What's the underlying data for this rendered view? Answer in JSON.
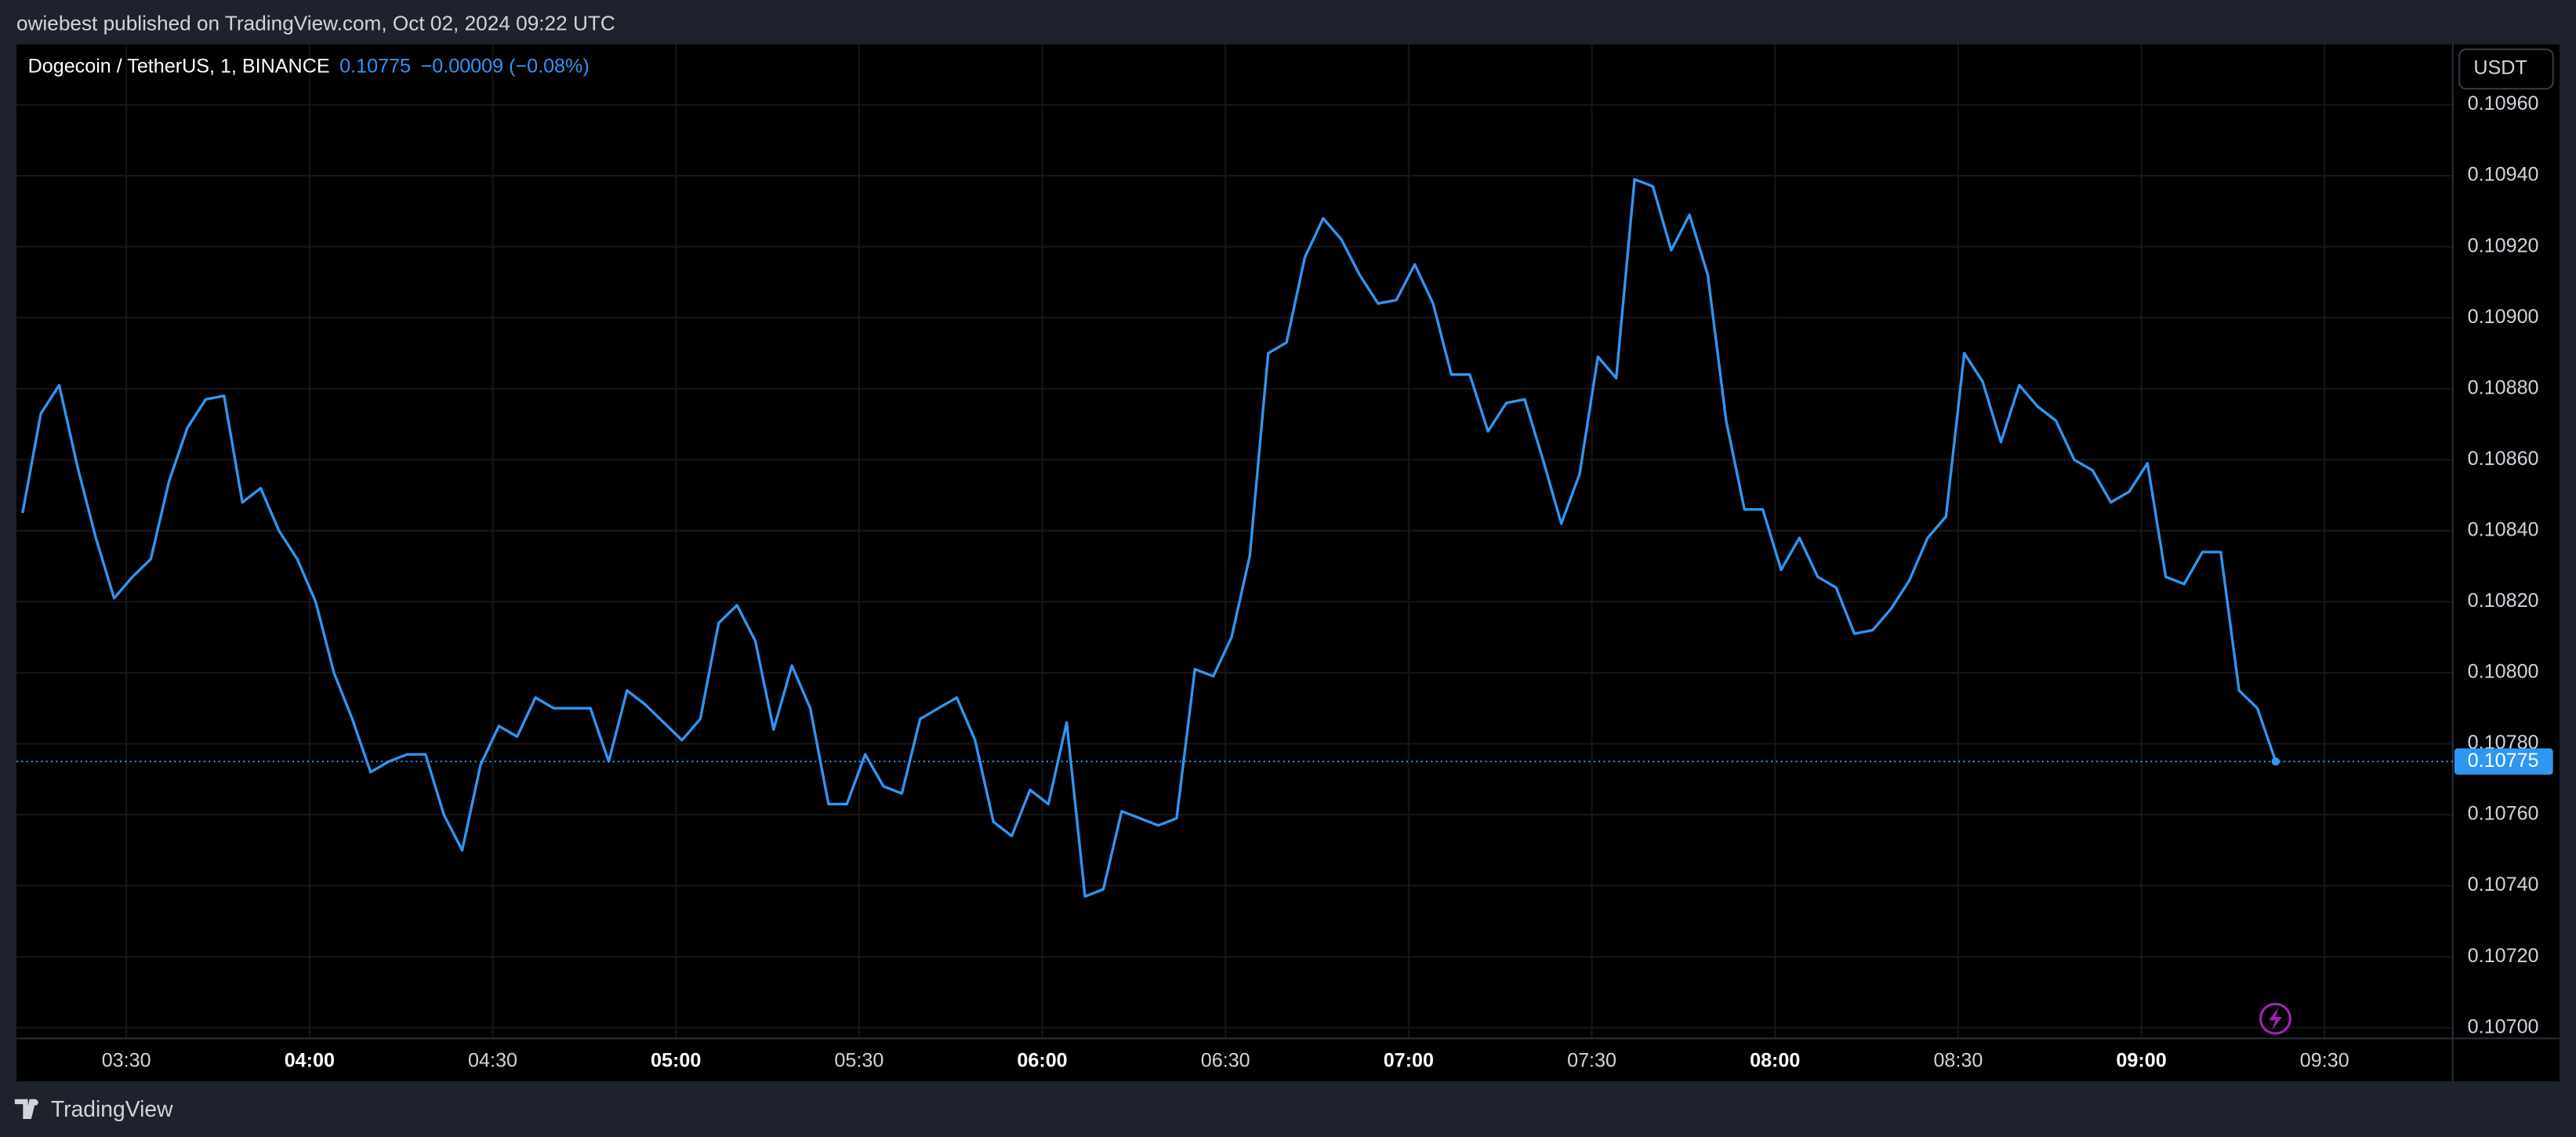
{
  "header": {
    "published": "owiebest published on TradingView.com, Oct 02, 2024 09:22 UTC"
  },
  "footer": {
    "brand": "TradingView"
  },
  "chart_data": {
    "type": "line",
    "symbol": "Dogecoin / TetherUS, 1, BINANCE",
    "last_price": {
      "value": 0.10775,
      "label": "0.10775"
    },
    "change": "−0.00009 (−0.08%)",
    "currency": "USDT",
    "color": "#2f96f3",
    "grid": true,
    "x": [
      "03:13",
      "03:16",
      "03:19",
      "03:22",
      "03:25",
      "03:28",
      "03:31",
      "03:34",
      "03:37",
      "03:40",
      "03:43",
      "03:46",
      "03:49",
      "03:52",
      "03:55",
      "03:58",
      "04:01",
      "04:04",
      "04:07",
      "04:10",
      "04:13",
      "04:16",
      "04:19",
      "04:22",
      "04:25",
      "04:28",
      "04:31",
      "04:34",
      "04:37",
      "04:40",
      "04:43",
      "04:46",
      "04:49",
      "04:52",
      "04:55",
      "04:58",
      "05:01",
      "05:04",
      "05:07",
      "05:10",
      "05:13",
      "05:16",
      "05:19",
      "05:22",
      "05:25",
      "05:28",
      "05:31",
      "05:34",
      "05:37",
      "05:40",
      "05:43",
      "05:46",
      "05:49",
      "05:52",
      "05:55",
      "05:58",
      "06:01",
      "06:04",
      "06:07",
      "06:10",
      "06:13",
      "06:16",
      "06:19",
      "06:22",
      "06:25",
      "06:28",
      "06:31",
      "06:34",
      "06:37",
      "06:40",
      "06:43",
      "06:46",
      "06:49",
      "06:52",
      "06:55",
      "06:58",
      "07:01",
      "07:04",
      "07:07",
      "07:10",
      "07:13",
      "07:16",
      "07:19",
      "07:22",
      "07:25",
      "07:28",
      "07:31",
      "07:34",
      "07:37",
      "07:40",
      "07:43",
      "07:46",
      "07:49",
      "07:52",
      "07:55",
      "07:58",
      "08:01",
      "08:04",
      "08:07",
      "08:10",
      "08:13",
      "08:16",
      "08:19",
      "08:22",
      "08:25",
      "08:28",
      "08:31",
      "08:34",
      "08:37",
      "08:40",
      "08:43",
      "08:46",
      "08:49",
      "08:52",
      "08:55",
      "08:58",
      "09:01",
      "09:04",
      "09:07",
      "09:10",
      "09:13",
      "09:16",
      "09:19",
      "09:22"
    ],
    "values": [
      0.10845,
      0.10873,
      0.10881,
      0.10858,
      0.10838,
      0.10821,
      0.10827,
      0.10832,
      0.10854,
      0.10869,
      0.10877,
      0.10878,
      0.10848,
      0.10852,
      0.1084,
      0.10832,
      0.1082,
      0.108,
      0.10787,
      0.10772,
      0.10775,
      0.10777,
      0.10777,
      0.1076,
      0.1075,
      0.10774,
      0.10785,
      0.10782,
      0.10793,
      0.1079,
      0.1079,
      0.1079,
      0.10775,
      0.10795,
      0.10791,
      0.10786,
      0.10781,
      0.10787,
      0.10814,
      0.10819,
      0.10809,
      0.10784,
      0.10802,
      0.1079,
      0.10763,
      0.10763,
      0.10777,
      0.10768,
      0.10766,
      0.10787,
      0.1079,
      0.10793,
      0.10781,
      0.10758,
      0.10754,
      0.10767,
      0.10763,
      0.10786,
      0.10737,
      0.10739,
      0.10761,
      0.10759,
      0.10757,
      0.10759,
      0.10801,
      0.10799,
      0.1081,
      0.10833,
      0.1089,
      0.10893,
      0.10917,
      0.10928,
      0.10922,
      0.10912,
      0.10904,
      0.10905,
      0.10915,
      0.10904,
      0.10884,
      0.10884,
      0.10868,
      0.10876,
      0.10877,
      0.1086,
      0.10842,
      0.10856,
      0.10889,
      0.10883,
      0.10939,
      0.10937,
      0.10919,
      0.10929,
      0.10912,
      0.10871,
      0.10846,
      0.10846,
      0.10829,
      0.10838,
      0.10827,
      0.10824,
      0.10811,
      0.10812,
      0.10818,
      0.10826,
      0.10838,
      0.10844,
      0.1089,
      0.10882,
      0.10865,
      0.10881,
      0.10875,
      0.10871,
      0.1086,
      0.10857,
      0.10848,
      0.10851,
      0.10859,
      0.10827,
      0.10825,
      0.10834,
      0.10834,
      0.10795,
      0.1079,
      0.10775
    ],
    "xlim": [
      "03:12",
      "09:51"
    ],
    "xticks": [
      "03:30",
      "04:00",
      "04:30",
      "05:00",
      "05:30",
      "06:00",
      "06:30",
      "07:00",
      "07:30",
      "08:00",
      "08:30",
      "09:00",
      "09:30"
    ],
    "ylim": [
      0.10697,
      0.10977
    ],
    "yticks": [
      {
        "value": 0.107,
        "label": "0.10700"
      },
      {
        "value": 0.1072,
        "label": "0.10720"
      },
      {
        "value": 0.1074,
        "label": "0.10740"
      },
      {
        "value": 0.1076,
        "label": "0.10760"
      },
      {
        "value": 0.1078,
        "label": "0.10780"
      },
      {
        "value": 0.108,
        "label": "0.10800"
      },
      {
        "value": 0.1082,
        "label": "0.10820"
      },
      {
        "value": 0.1084,
        "label": "0.10840"
      },
      {
        "value": 0.1086,
        "label": "0.10860"
      },
      {
        "value": 0.1088,
        "label": "0.10880"
      },
      {
        "value": 0.109,
        "label": "0.10900"
      },
      {
        "value": 0.1092,
        "label": "0.10920"
      },
      {
        "value": 0.1094,
        "label": "0.10940"
      },
      {
        "value": 0.1096,
        "label": "0.10960"
      }
    ]
  }
}
